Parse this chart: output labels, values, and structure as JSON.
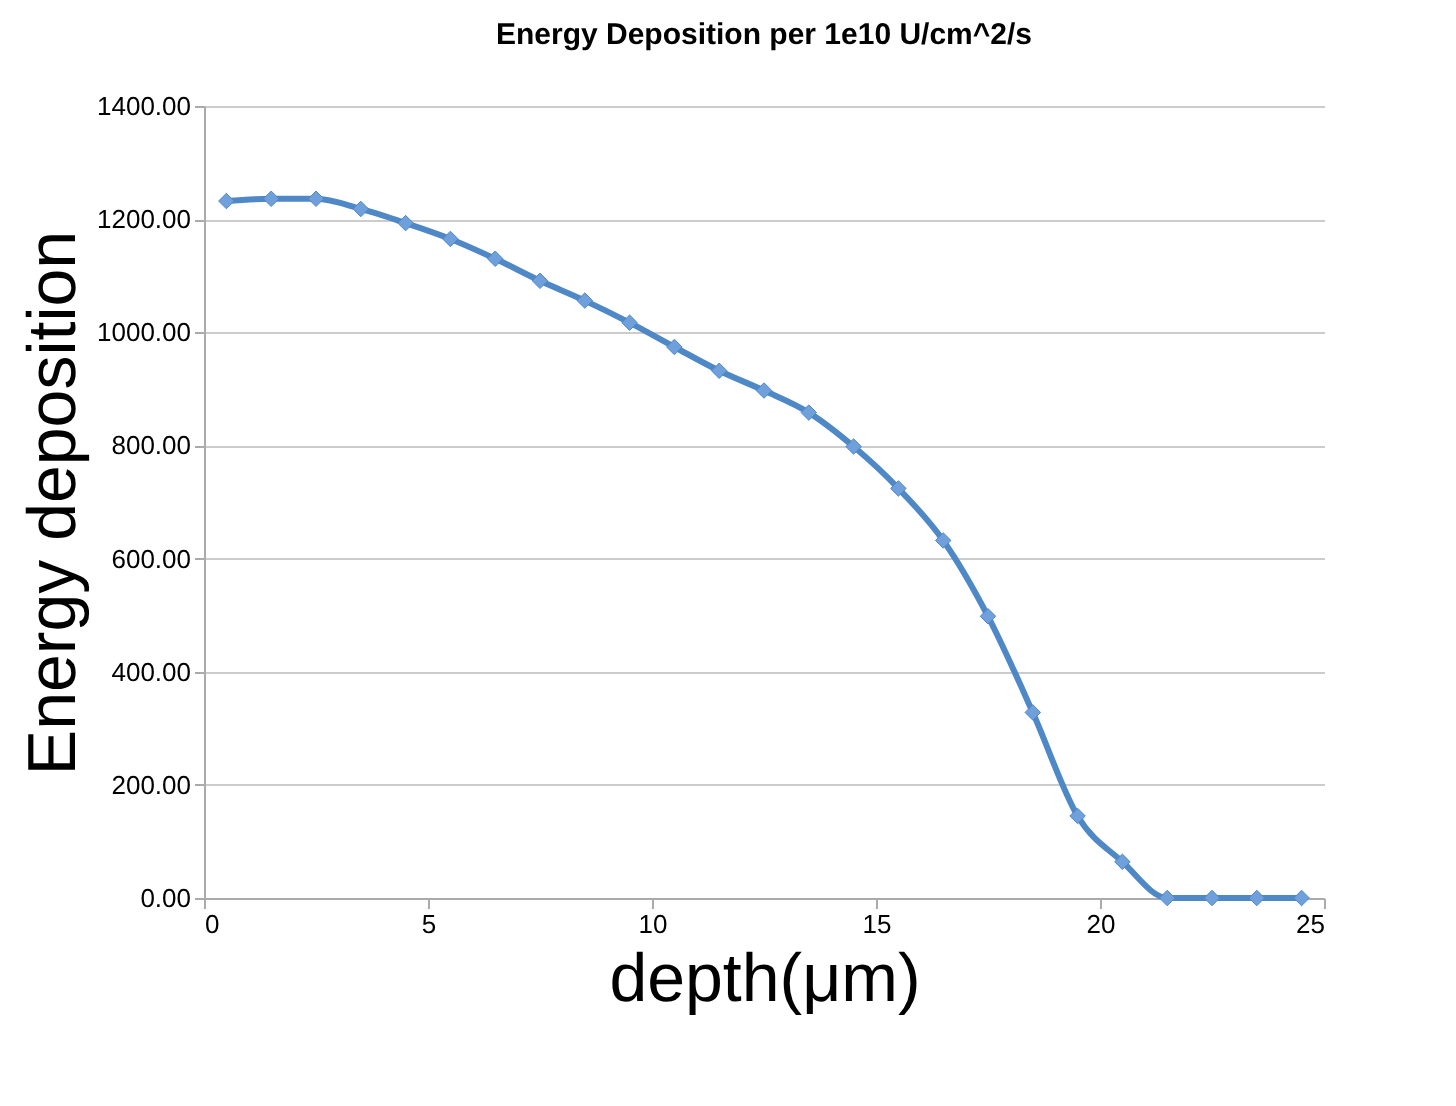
{
  "chart_data": {
    "type": "line",
    "title": "Energy Deposition per 1e10 U/cm^2/s",
    "xlabel": "depth(μm)",
    "ylabel": "Energy deposition",
    "x": [
      0.5,
      1.5,
      2.5,
      3.5,
      4.5,
      5.5,
      6.5,
      7.5,
      8.5,
      9.5,
      10.5,
      11.5,
      12.5,
      13.5,
      14.5,
      15.5,
      16.5,
      17.5,
      18.5,
      19.5,
      20.5,
      21.5,
      22.5,
      23.5,
      24.5
    ],
    "series": [
      {
        "color": "#4f88c6",
        "values": [
          1232,
          1236,
          1236,
          1218,
          1193,
          1165,
          1130,
          1091,
          1056,
          1017,
          974,
          932,
          897,
          858,
          798,
          724,
          632,
          498,
          328,
          145,
          64,
          0,
          0,
          0,
          0
        ]
      }
    ],
    "xlim": [
      0,
      25
    ],
    "xticks": [
      0,
      5,
      10,
      15,
      20,
      25
    ],
    "ylim": [
      0,
      1400
    ],
    "yticks": [
      {
        "value": 0,
        "label": "0.00"
      },
      {
        "value": 200,
        "label": "200.00"
      },
      {
        "value": 400,
        "label": "400.00"
      },
      {
        "value": 600,
        "label": "600.00"
      },
      {
        "value": 800,
        "label": "800.00"
      },
      {
        "value": 1000,
        "label": "1000.00"
      },
      {
        "value": 1200,
        "label": "1200.00"
      },
      {
        "value": 1400,
        "label": "1400.00"
      }
    ],
    "grid": "y",
    "marker": "diamond",
    "line_style": "solid",
    "legend": false
  }
}
